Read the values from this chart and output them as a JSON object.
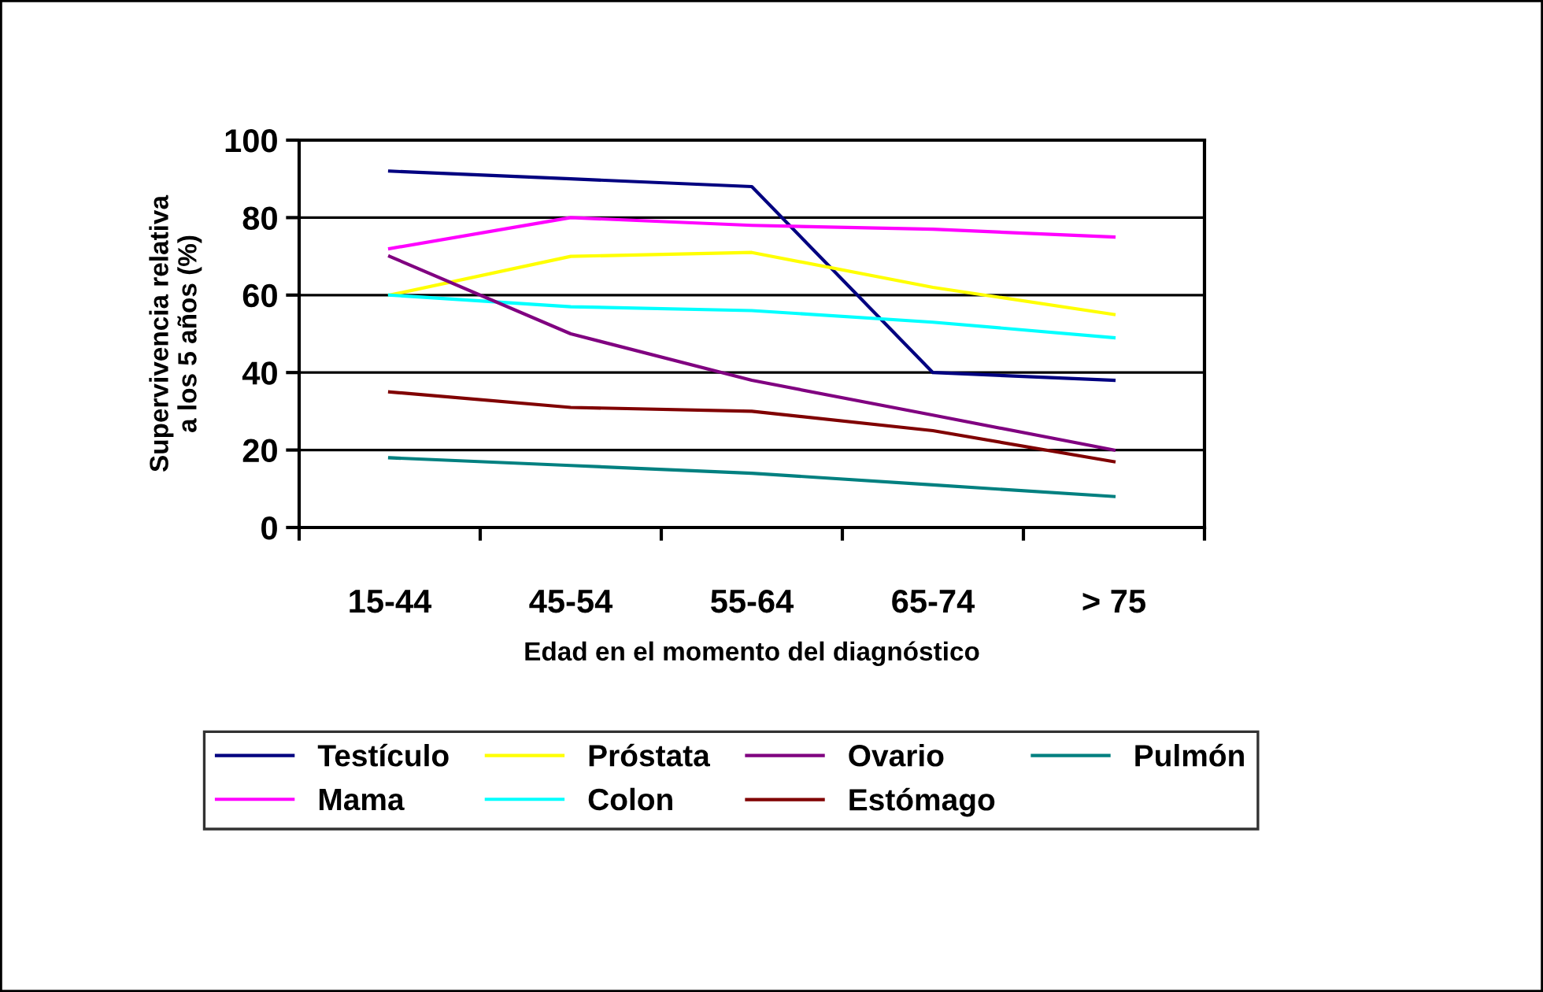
{
  "chart_data": {
    "type": "line",
    "xlabel": "Edad en el momento del diagnóstico",
    "ylabel": "Supervivencia relativa\na los 5 años (%)",
    "categories": [
      "15-44",
      "45-54",
      "55-64",
      "65-74",
      "> 75"
    ],
    "series": [
      {
        "name": "Testículo",
        "color": "#000080",
        "values": [
          92,
          90,
          88,
          40,
          38
        ]
      },
      {
        "name": "Mama",
        "color": "#ff00ff",
        "values": [
          72,
          80,
          78,
          77,
          75
        ]
      },
      {
        "name": "Próstata",
        "color": "#ffff00",
        "values": [
          60,
          70,
          71,
          62,
          55
        ]
      },
      {
        "name": "Colon",
        "color": "#00ffff",
        "values": [
          60,
          57,
          56,
          53,
          49
        ]
      },
      {
        "name": "Ovario",
        "color": "#800080",
        "values": [
          70,
          50,
          38,
          29,
          20
        ]
      },
      {
        "name": "Estómago",
        "color": "#800000",
        "values": [
          35,
          31,
          30,
          25,
          17
        ]
      },
      {
        "name": "Pulmón",
        "color": "#008080",
        "values": [
          18,
          16,
          14,
          11,
          8
        ]
      }
    ],
    "ylim": [
      0,
      100
    ],
    "yticks": [
      0,
      20,
      40,
      60,
      80,
      100
    ],
    "grid": "y",
    "legend": "bottom",
    "marker": "none",
    "line_style": "solid"
  }
}
